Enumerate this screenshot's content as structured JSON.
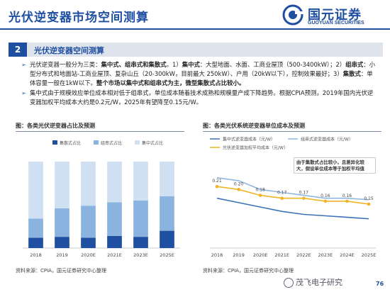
{
  "header": {
    "title": "光伏逆变器市场空间测算",
    "logo_cn": "国元证券",
    "logo_en": "GUOYUAN SECURITIES"
  },
  "section": {
    "number": "2",
    "title": "光伏逆变器空间测算"
  },
  "bullets": [
    {
      "parts": [
        {
          "text": "光伏逆变器一般分为三类：",
          "bold": false
        },
        {
          "text": "集中式、组串式和集散式",
          "bold": true
        },
        {
          "text": "。1）",
          "bold": false
        },
        {
          "text": "集中式",
          "bold": true
        },
        {
          "text": "：大型地面、水面、工商业屋顶（500-3400kW）；2）",
          "bold": false
        },
        {
          "text": "组串式",
          "bold": true
        },
        {
          "text": "：小型分布式和地面站-工商业屋顶、复杂山丘（20-300kW，目前最大 250kW）、户用（20kW以下），控制效果最好；3）",
          "bold": false
        },
        {
          "text": "集散式",
          "bold": true
        },
        {
          "text": "：单体容量一般在1kW以下。",
          "bold": false
        },
        {
          "text": "整个市场以集中式和组串式为主，微型集散式占比较小。",
          "bold": true
        }
      ]
    },
    {
      "parts": [
        {
          "text": "集中式由于规模效应单位成本相对低于组串式，单位成本随着技术成熟和规模量产成下降趋势。根据CPIA预测，2019年国内光伏逆变器加权平均成本大约是0.2元/W，2025年有望降至0.15元/W。",
          "bold": false
        }
      ]
    }
  ],
  "chart_left": {
    "heading": "图：各类光伏逆变器占比及预测",
    "source": "资料来源：CPIA，国元证券研究中心整理"
  },
  "chart_right": {
    "heading": "图：各类光伏系统逆变器单位成本及预测",
    "source": "资料来源：CPIA，国元证券研究中心整理",
    "annotation": "由于集散式占比较小，且差异化较大，假设单位成本等于加权平均值"
  },
  "chart_data": [
    {
      "type": "bar",
      "stacked": true,
      "categories": [
        "2018",
        "2019",
        "2020E",
        "2021E",
        "2023E",
        "2025E"
      ],
      "series": [
        {
          "name": "集散式占比",
          "values": [
            0.12,
            0.13,
            0.12,
            0.14,
            0.13,
            0.2
          ],
          "color": "#1f4fa0"
        },
        {
          "name": "组串式占比",
          "values": [
            0.22,
            0.33,
            0.37,
            0.39,
            0.42,
            0.4
          ],
          "color": "#8ab4df"
        },
        {
          "name": "集中式占比",
          "values": [
            0.66,
            0.54,
            0.51,
            0.47,
            0.45,
            0.4
          ],
          "color": "#cfe0f2"
        }
      ],
      "ylim": [
        0,
        1
      ],
      "legend": "top"
    },
    {
      "type": "line",
      "categories": [
        "2018",
        "2019",
        "2020E",
        "2021E",
        "2022E",
        "2023E",
        "2024E",
        "2025E"
      ],
      "series": [
        {
          "name": "集中式逆变器成本（元/W）",
          "values": [
            0.17,
            0.155,
            0.14,
            0.125,
            0.115,
            0.11,
            0.105,
            0.1
          ],
          "color": "#3a73b8",
          "labels": false
        },
        {
          "name": "组串式逆变器成本（元/W）",
          "values": [
            0.24,
            0.23,
            0.2,
            0.19,
            0.18,
            0.17,
            0.17,
            0.165
          ],
          "color": "#8fb8e0",
          "labels": false
        },
        {
          "name": "光伏逆变器加权平均成本（元/W）",
          "values": [
            0.21,
            0.2,
            0.18,
            0.17,
            0.17,
            0.16,
            0.16,
            0.15
          ],
          "color": "#f0b429",
          "labels": true
        }
      ],
      "data_labels": [
        "0.21",
        "0.20",
        "0.18",
        "0.17",
        "0.17",
        "0.16",
        "0.16",
        "0.15"
      ],
      "ylim": [
        0,
        0.3
      ],
      "legend": "top"
    }
  ],
  "footer": {
    "watermark": "茂飞电子研究",
    "page": "76"
  }
}
